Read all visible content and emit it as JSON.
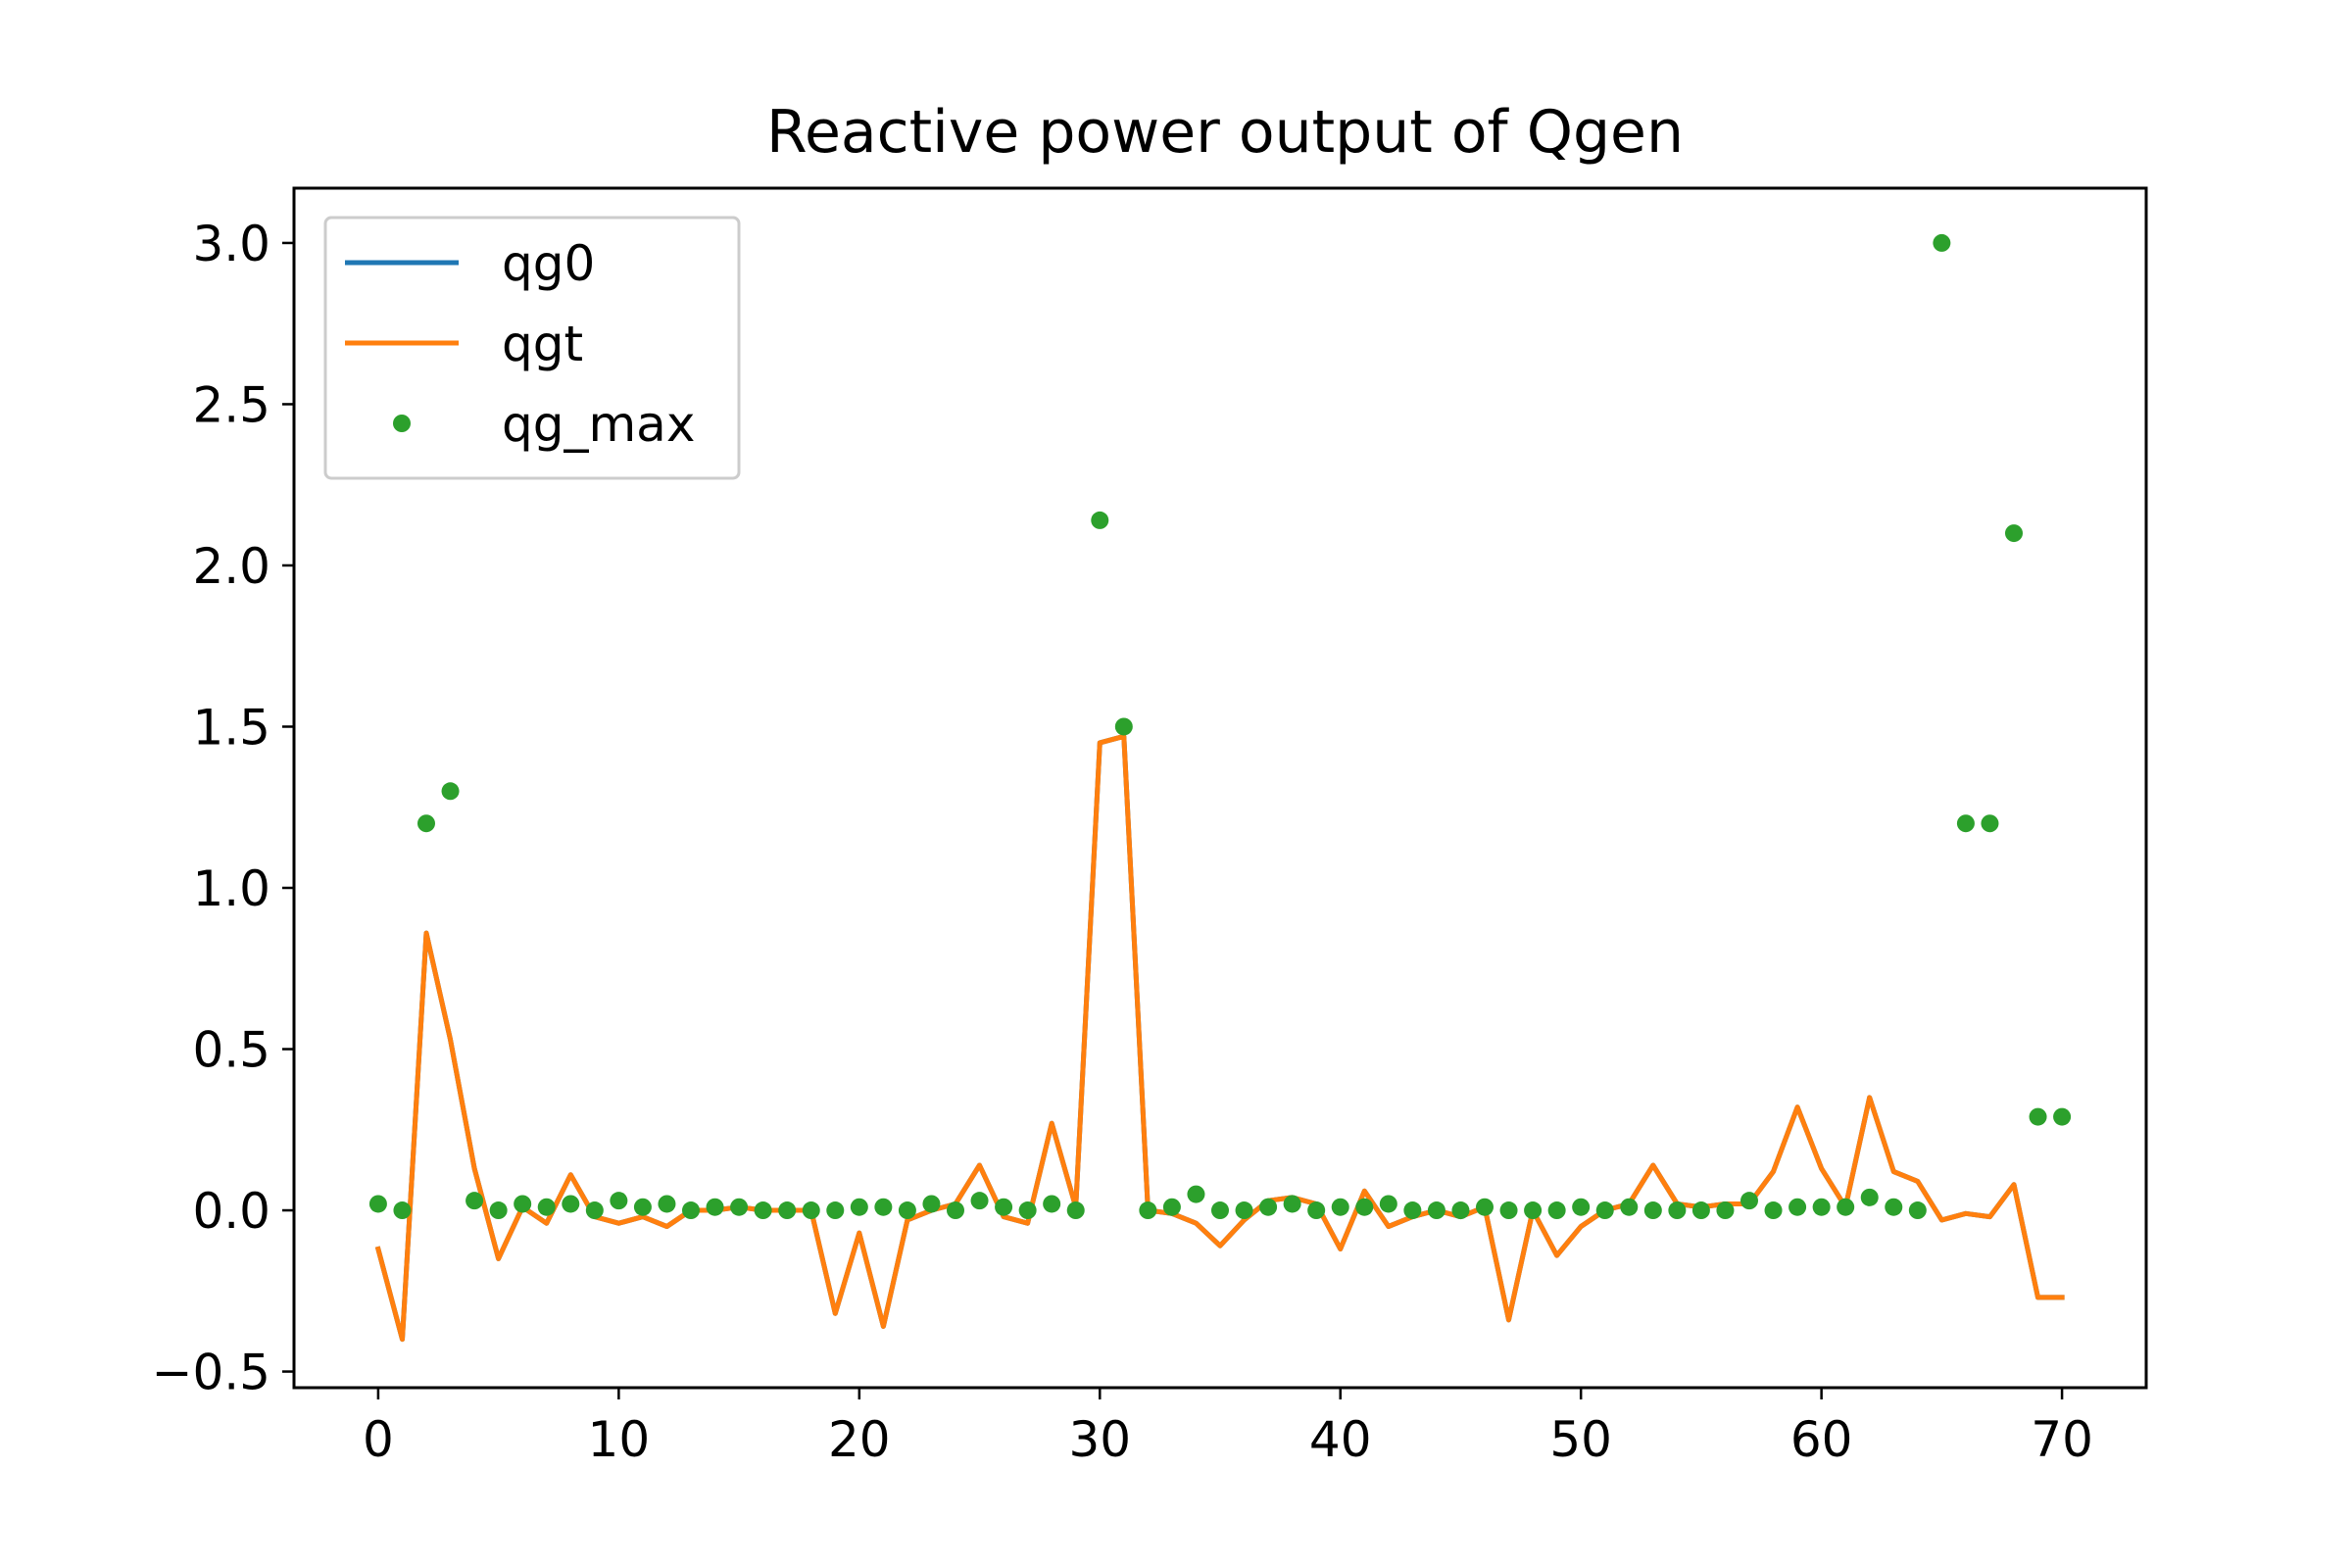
{
  "chart_data": {
    "type": "line",
    "title": "Reactive power output of Qgen",
    "xlabel": "",
    "ylabel": "",
    "xlim": [
      -3.5,
      73.5
    ],
    "ylim": [
      -0.55,
      3.17
    ],
    "x_ticks": [
      0,
      10,
      20,
      30,
      40,
      50,
      60,
      70
    ],
    "x_tick_labels": [
      "0",
      "10",
      "20",
      "30",
      "40",
      "50",
      "60",
      "70"
    ],
    "y_ticks": [
      -0.5,
      0.0,
      0.5,
      1.0,
      1.5,
      2.0,
      2.5,
      3.0
    ],
    "y_tick_labels": [
      "−0.5",
      "0.0",
      "0.5",
      "1.0",
      "1.5",
      "2.0",
      "2.5",
      "3.0"
    ],
    "grid": false,
    "legend_position": "upper left",
    "x": [
      0,
      1,
      2,
      3,
      4,
      5,
      6,
      7,
      8,
      9,
      10,
      11,
      12,
      13,
      14,
      15,
      16,
      17,
      18,
      19,
      20,
      21,
      22,
      23,
      24,
      25,
      26,
      27,
      28,
      29,
      30,
      31,
      32,
      33,
      34,
      35,
      36,
      37,
      38,
      39,
      40,
      41,
      42,
      43,
      44,
      45,
      46,
      47,
      48,
      49,
      50,
      51,
      52,
      53,
      54,
      55,
      56,
      57,
      58,
      59,
      60,
      61,
      62,
      63,
      64,
      65,
      66,
      67,
      68,
      69,
      70
    ],
    "series": [
      {
        "name": "qg0",
        "style": "line",
        "color": "#1f77b4",
        "values": [
          -0.12,
          -0.4,
          0.86,
          0.53,
          0.13,
          -0.15,
          0.01,
          -0.04,
          0.11,
          -0.02,
          -0.04,
          -0.02,
          -0.05,
          0.0,
          0.0,
          0.01,
          0.0,
          0.0,
          0.0,
          -0.32,
          -0.07,
          -0.36,
          -0.03,
          0.0,
          0.02,
          0.14,
          -0.02,
          -0.04,
          0.27,
          0.01,
          1.45,
          1.47,
          0.0,
          -0.01,
          -0.04,
          -0.11,
          -0.03,
          0.03,
          0.04,
          0.02,
          -0.12,
          0.06,
          -0.05,
          -0.02,
          0.0,
          -0.02,
          0.01,
          -0.34,
          0.0,
          -0.14,
          -0.05,
          0.0,
          0.02,
          0.14,
          0.02,
          0.01,
          0.02,
          0.02,
          0.12,
          0.32,
          0.13,
          0.01,
          0.35,
          0.12,
          0.09,
          -0.03,
          -0.01,
          -0.02,
          0.08,
          -0.27,
          -0.27
        ]
      },
      {
        "name": "qgt",
        "style": "line",
        "color": "#ff7f0e",
        "values": [
          -0.12,
          -0.4,
          0.86,
          0.53,
          0.13,
          -0.15,
          0.01,
          -0.04,
          0.11,
          -0.02,
          -0.04,
          -0.02,
          -0.05,
          0.0,
          0.0,
          0.01,
          0.0,
          0.0,
          0.0,
          -0.32,
          -0.07,
          -0.36,
          -0.03,
          0.0,
          0.02,
          0.14,
          -0.02,
          -0.04,
          0.27,
          0.01,
          1.45,
          1.47,
          0.0,
          -0.01,
          -0.04,
          -0.11,
          -0.03,
          0.03,
          0.04,
          0.02,
          -0.12,
          0.06,
          -0.05,
          -0.02,
          0.0,
          -0.02,
          0.01,
          -0.34,
          0.0,
          -0.14,
          -0.05,
          0.0,
          0.02,
          0.14,
          0.02,
          0.01,
          0.02,
          0.02,
          0.12,
          0.32,
          0.13,
          0.01,
          0.35,
          0.12,
          0.09,
          -0.03,
          -0.01,
          -0.02,
          0.08,
          -0.27,
          -0.27
        ]
      },
      {
        "name": "qg_max",
        "style": "points",
        "color": "#2ca02c",
        "values": [
          0.02,
          0.0,
          1.2,
          1.3,
          0.03,
          0.0,
          0.02,
          0.01,
          0.02,
          0.0,
          0.03,
          0.01,
          0.02,
          0.0,
          0.01,
          0.01,
          0.0,
          0.0,
          0.0,
          0.0,
          0.01,
          0.01,
          0.0,
          0.02,
          0.0,
          0.03,
          0.01,
          0.0,
          0.02,
          0.0,
          2.14,
          1.5,
          0.0,
          0.01,
          0.05,
          0.0,
          0.0,
          0.01,
          0.02,
          0.0,
          0.01,
          0.01,
          0.02,
          0.0,
          0.0,
          0.0,
          0.01,
          0.0,
          0.0,
          0.0,
          0.01,
          0.0,
          0.01,
          0.0,
          0.0,
          0.0,
          0.0,
          0.03,
          0.0,
          0.01,
          0.01,
          0.01,
          0.04,
          0.01,
          0.0,
          3.0,
          1.2,
          1.2,
          2.1,
          0.29,
          0.29
        ]
      }
    ]
  }
}
